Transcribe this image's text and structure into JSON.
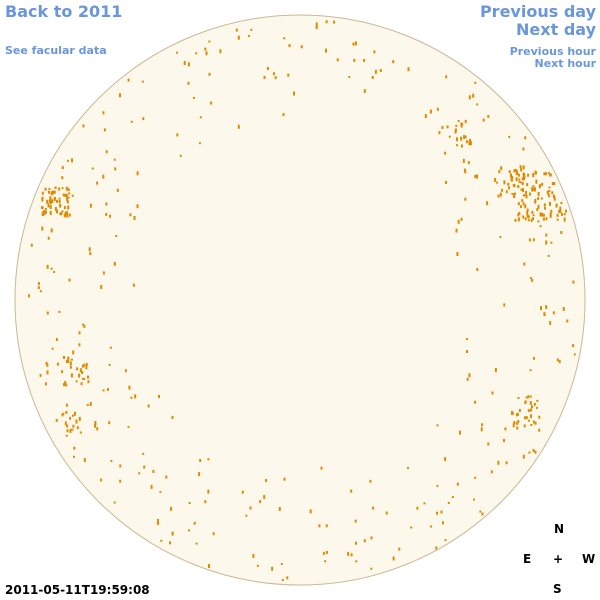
{
  "nav": {
    "back": "Back to 2011",
    "facular": "See facular data",
    "previous_day": "Previous day",
    "next_day": "Next day",
    "previous_hour": "Previous hour",
    "next_hour": "Next hour"
  },
  "timestamp": "2011-05-11T19:59:08",
  "compass": {
    "north": "N",
    "east": "E",
    "center": "+",
    "west": "W",
    "south": "S"
  }
}
